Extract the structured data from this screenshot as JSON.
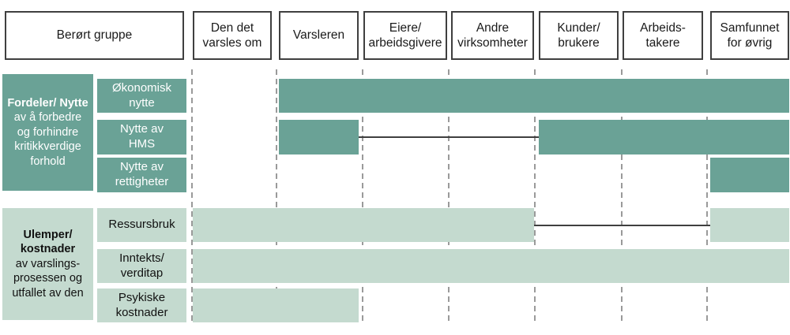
{
  "title": "Berørt gruppe matrix",
  "header": {
    "group_label": "Berørt gruppe",
    "columns": [
      "Den det\nvarsles om",
      "Varsleren",
      "Eiere/\narbeidsgivere",
      "Andre\nvirksomheter",
      "Kunder/\nbrukere",
      "Arbeids-\ntakere",
      "Samfunnet\nfor øvrig"
    ]
  },
  "groups": [
    {
      "id": "benefits",
      "style": "dark",
      "title_bold": "Fordeler/ Nytte",
      "title_rest": "av å forbedre\nog forhindre\nkritikkverdige\nforhold",
      "rows": [
        {
          "label": "Økonomisk\nnytte",
          "segments": [
            {
              "type": "bar",
              "start": 2,
              "end": 7
            }
          ]
        },
        {
          "label": "Nytte av\nHMS",
          "segments": [
            {
              "type": "bar",
              "start": 2,
              "end": 2
            },
            {
              "type": "line",
              "start": 3,
              "end": 4
            },
            {
              "type": "bar",
              "start": 5,
              "end": 7
            }
          ]
        },
        {
          "label": "Nytte av\nrettigheter",
          "segments": [
            {
              "type": "bar",
              "start": 7,
              "end": 7
            }
          ]
        }
      ]
    },
    {
      "id": "costs",
      "style": "light",
      "title_bold": "Ulemper/\nkostnader",
      "title_rest": "av varslings-\nprosessen og\nutfallet av den",
      "rows": [
        {
          "label": "Ressursbruk",
          "segments": [
            {
              "type": "bar",
              "start": 1,
              "end": 4
            },
            {
              "type": "line",
              "start": 5,
              "end": 6
            },
            {
              "type": "bar",
              "start": 7,
              "end": 7
            }
          ]
        },
        {
          "label": "Inntekts/\nverditap",
          "segments": [
            {
              "type": "bar",
              "start": 1,
              "end": 7
            }
          ]
        },
        {
          "label": "Psykiske\nkostnader",
          "segments": [
            {
              "type": "bar",
              "start": 1,
              "end": 2
            }
          ]
        }
      ]
    }
  ],
  "colors": {
    "dark_teal": "#6aa296",
    "light_teal": "#c4dacf",
    "connector_line": "#3f3f3f",
    "divider_gray": "#9a9a9a",
    "box_border": "#3f3f3f"
  }
}
